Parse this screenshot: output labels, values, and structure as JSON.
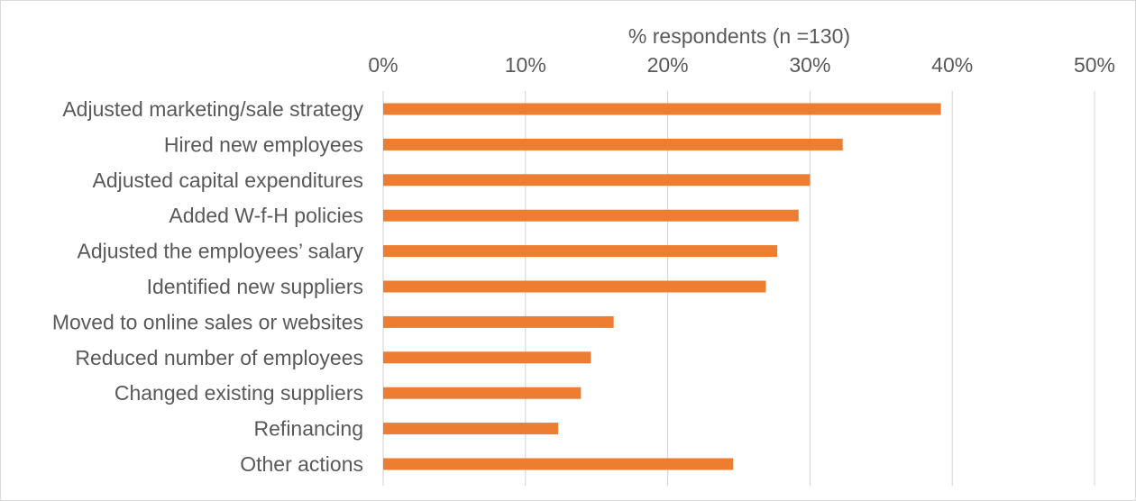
{
  "chart_data": {
    "type": "bar",
    "orientation": "horizontal",
    "xlabel": "% respondents (n =130)",
    "ylabel": "",
    "xlim": [
      0,
      50
    ],
    "x_ticks": [
      "0%",
      "10%",
      "20%",
      "30%",
      "40%",
      "50%"
    ],
    "x_tick_values": [
      0,
      10,
      20,
      30,
      40,
      50
    ],
    "grid": true,
    "legend": "none",
    "bar_color": "#ED7D31",
    "grid_color": "#d9d9d9",
    "categories": [
      "Adjusted marketing/sale strategy",
      "Hired new employees",
      "Adjusted capital expenditures",
      "Added W-f-H policies",
      "Adjusted the employees’ salary",
      "Identified new suppliers",
      "Moved to online sales or websites",
      "Reduced number of employees",
      "Changed existing suppliers",
      "Refinancing",
      "Other actions"
    ],
    "values": [
      39.2,
      32.3,
      30.0,
      29.2,
      27.7,
      26.9,
      16.2,
      14.6,
      13.9,
      12.3,
      24.6
    ]
  }
}
